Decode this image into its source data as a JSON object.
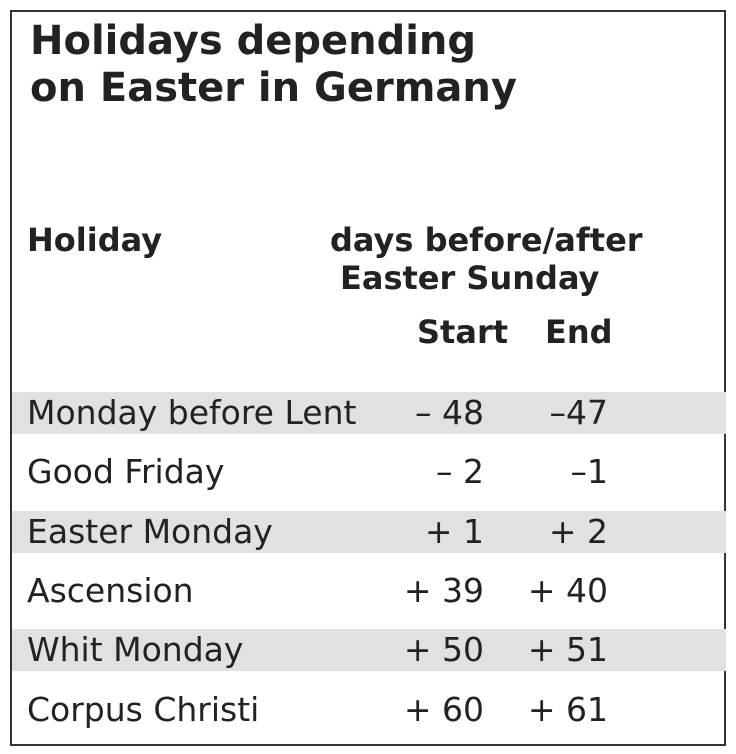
{
  "header": {
    "title": [
      "Holidays depending",
      "on Easter in Germany"
    ]
  },
  "table": {
    "columns": {
      "holiday": "Holiday",
      "offset": [
        "days before/after",
        "Easter Sunday"
      ],
      "start": "Start",
      "end": "End"
    },
    "rows": [
      [
        "Monday before Lent",
        "– 48",
        "–47"
      ],
      [
        "Good Friday",
        "– 2",
        "–1"
      ],
      [
        "Easter Monday",
        "+ 1",
        "+ 2"
      ],
      [
        "Ascension",
        "+ 39",
        "+ 40"
      ],
      [
        "Whit Monday",
        "+ 50",
        "+ 51"
      ],
      [
        "Corpus Christi",
        "+ 60",
        "+ 61"
      ]
    ]
  }
}
